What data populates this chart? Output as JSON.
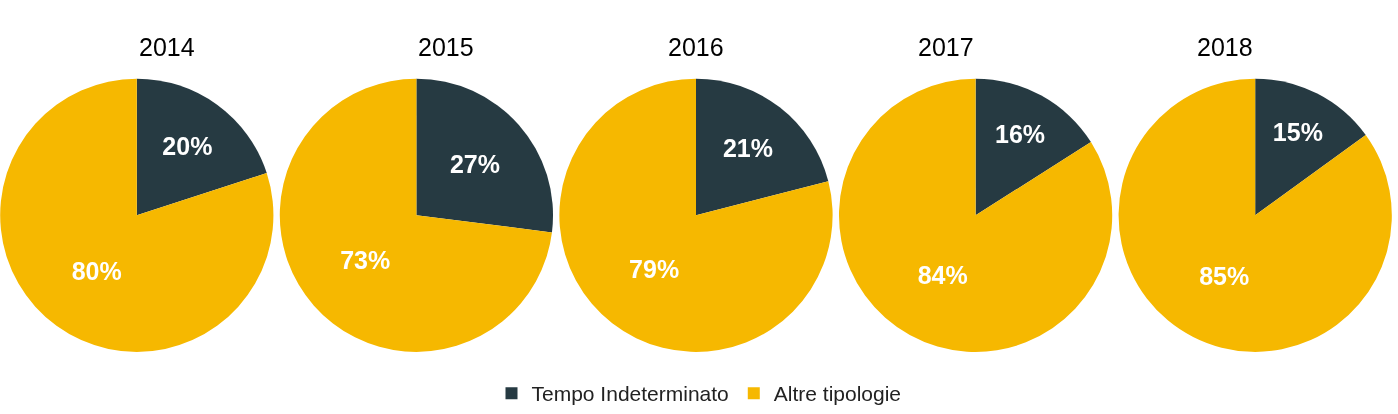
{
  "chart_data": [
    {
      "type": "pie",
      "title": "2014",
      "categories": [
        "Tempo Indeterminato",
        "Altre tipologie"
      ],
      "values": [
        20,
        80
      ],
      "value_labels": [
        "20%",
        "80%"
      ],
      "colors": [
        "#263a42",
        "#f6b800"
      ],
      "legend": "bottom"
    },
    {
      "type": "pie",
      "title": "2015",
      "categories": [
        null,
        null
      ],
      "values": [
        27,
        73
      ],
      "value_labels": [
        "27%",
        "73%"
      ],
      "colors": [
        "#263a42",
        "#f6b800"
      ]
    },
    {
      "type": "pie",
      "title": "2016",
      "categories": [
        null,
        null
      ],
      "values": [
        21,
        79
      ],
      "value_labels": [
        "21%",
        "79%"
      ],
      "colors": [
        "#263a42",
        "#f6b800"
      ]
    },
    {
      "type": "pie",
      "title": "2017",
      "categories": [
        null,
        null
      ],
      "values": [
        16,
        84
      ],
      "value_labels": [
        "16%",
        "84%"
      ],
      "colors": [
        "#263a42",
        "#f6b800"
      ]
    },
    {
      "type": "pie",
      "title": "2018",
      "categories": [
        null,
        null
      ],
      "values": [
        15,
        85
      ],
      "value_labels": [
        "15%",
        "85%"
      ],
      "colors": [
        "#263a42",
        "#f6b800"
      ]
    }
  ]
}
